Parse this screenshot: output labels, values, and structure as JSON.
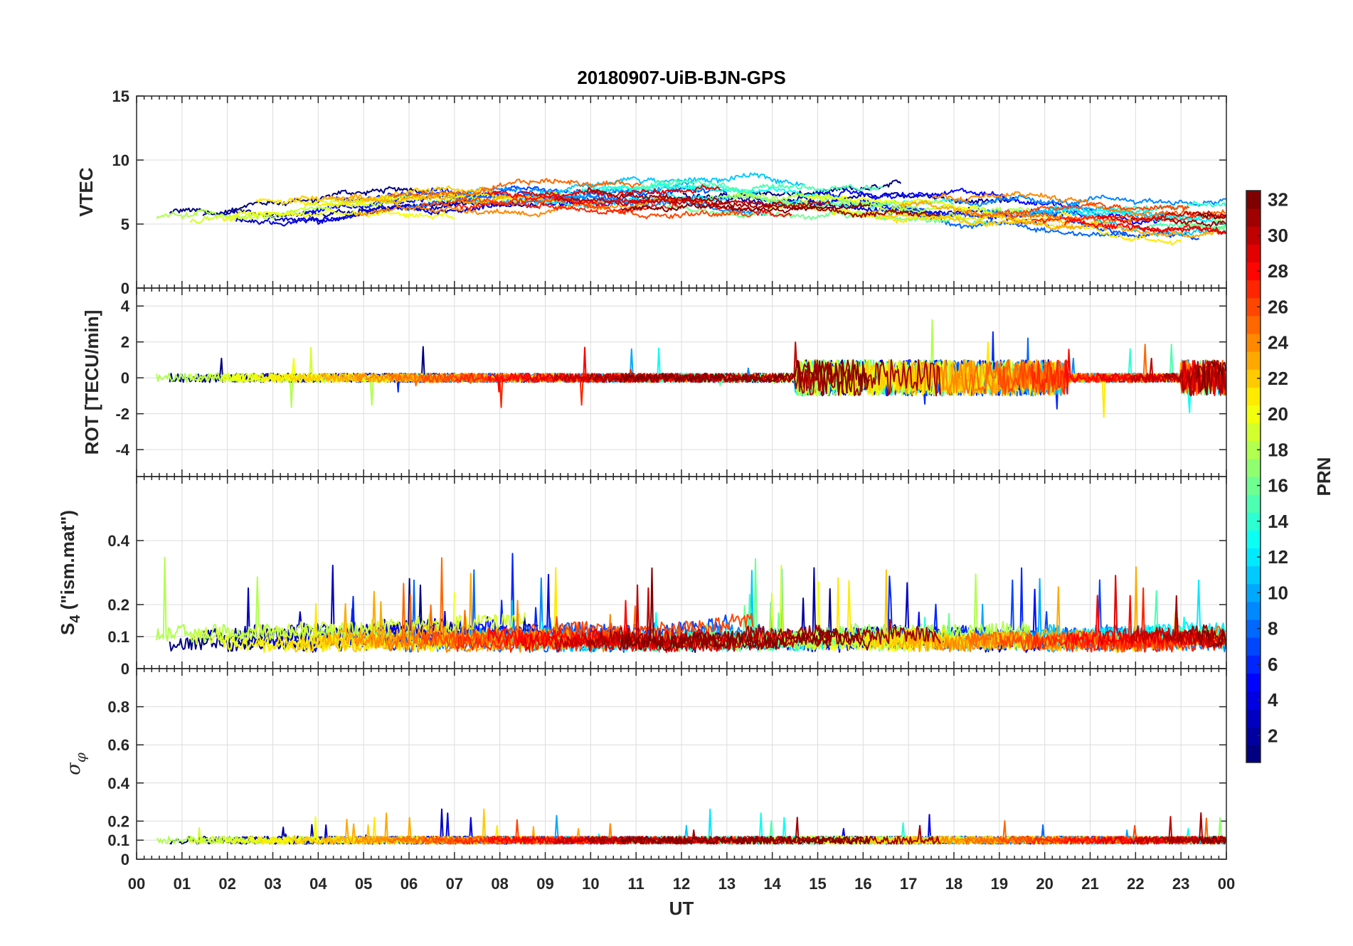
{
  "chart_data": {
    "type": "line",
    "title": "20180907-UiB-BJN-GPS",
    "xlabel": "UT",
    "x_ticks": [
      "00",
      "01",
      "02",
      "03",
      "04",
      "05",
      "06",
      "07",
      "08",
      "09",
      "10",
      "11",
      "12",
      "13",
      "14",
      "15",
      "16",
      "17",
      "18",
      "19",
      "20",
      "21",
      "22",
      "23",
      "00"
    ],
    "xlim": [
      0,
      24
    ],
    "panels": [
      {
        "id": "vtec",
        "ylabel": "VTEC",
        "ylim": [
          0,
          15
        ],
        "yticks": [
          "0",
          "5",
          "10",
          "15"
        ],
        "ytick_values": [
          0,
          5,
          10,
          15
        ],
        "baseline": 5.5,
        "noise": 0.9
      },
      {
        "id": "rot",
        "ylabel": "ROT [TECU/min]",
        "ylim": [
          -5.5,
          5
        ],
        "yticks": [
          "-4",
          "-2",
          "0",
          "2",
          "4"
        ],
        "ytick_values": [
          -4,
          -2,
          0,
          2,
          4
        ],
        "baseline": 0,
        "noise": 0.25
      },
      {
        "id": "s4",
        "ylabel_main": "S",
        "ylabel_sub": "4",
        "ylabel_rest": " (\"ism.mat\")",
        "ylim": [
          0,
          0.6
        ],
        "yticks": [
          "0",
          "0.1",
          "0.2",
          "0.4"
        ],
        "ytick_values": [
          0,
          0.1,
          0.2,
          0.4
        ],
        "baseline": 0.08,
        "noise": 0.05
      },
      {
        "id": "sigma",
        "ylabel_main": "σ",
        "ylabel_sub": "φ",
        "ylim": [
          0,
          1
        ],
        "yticks": [
          "0",
          "0.1",
          "0.2",
          "0.4",
          "0.6",
          "0.8"
        ],
        "ytick_values": [
          0,
          0.1,
          0.2,
          0.4,
          0.6,
          0.8
        ],
        "baseline": 0.1,
        "noise": 0.02
      }
    ],
    "series_summary": "GPS PRN 1-32 satellite tracks, colored by PRN",
    "colorbar": {
      "label": "PRN",
      "range": [
        1,
        32
      ],
      "ticks": [
        "2",
        "4",
        "6",
        "8",
        "10",
        "12",
        "14",
        "16",
        "18",
        "20",
        "22",
        "24",
        "26",
        "28",
        "30",
        "32"
      ],
      "tick_values": [
        2,
        4,
        6,
        8,
        10,
        12,
        14,
        16,
        18,
        20,
        22,
        24,
        26,
        28,
        30,
        32
      ]
    }
  }
}
